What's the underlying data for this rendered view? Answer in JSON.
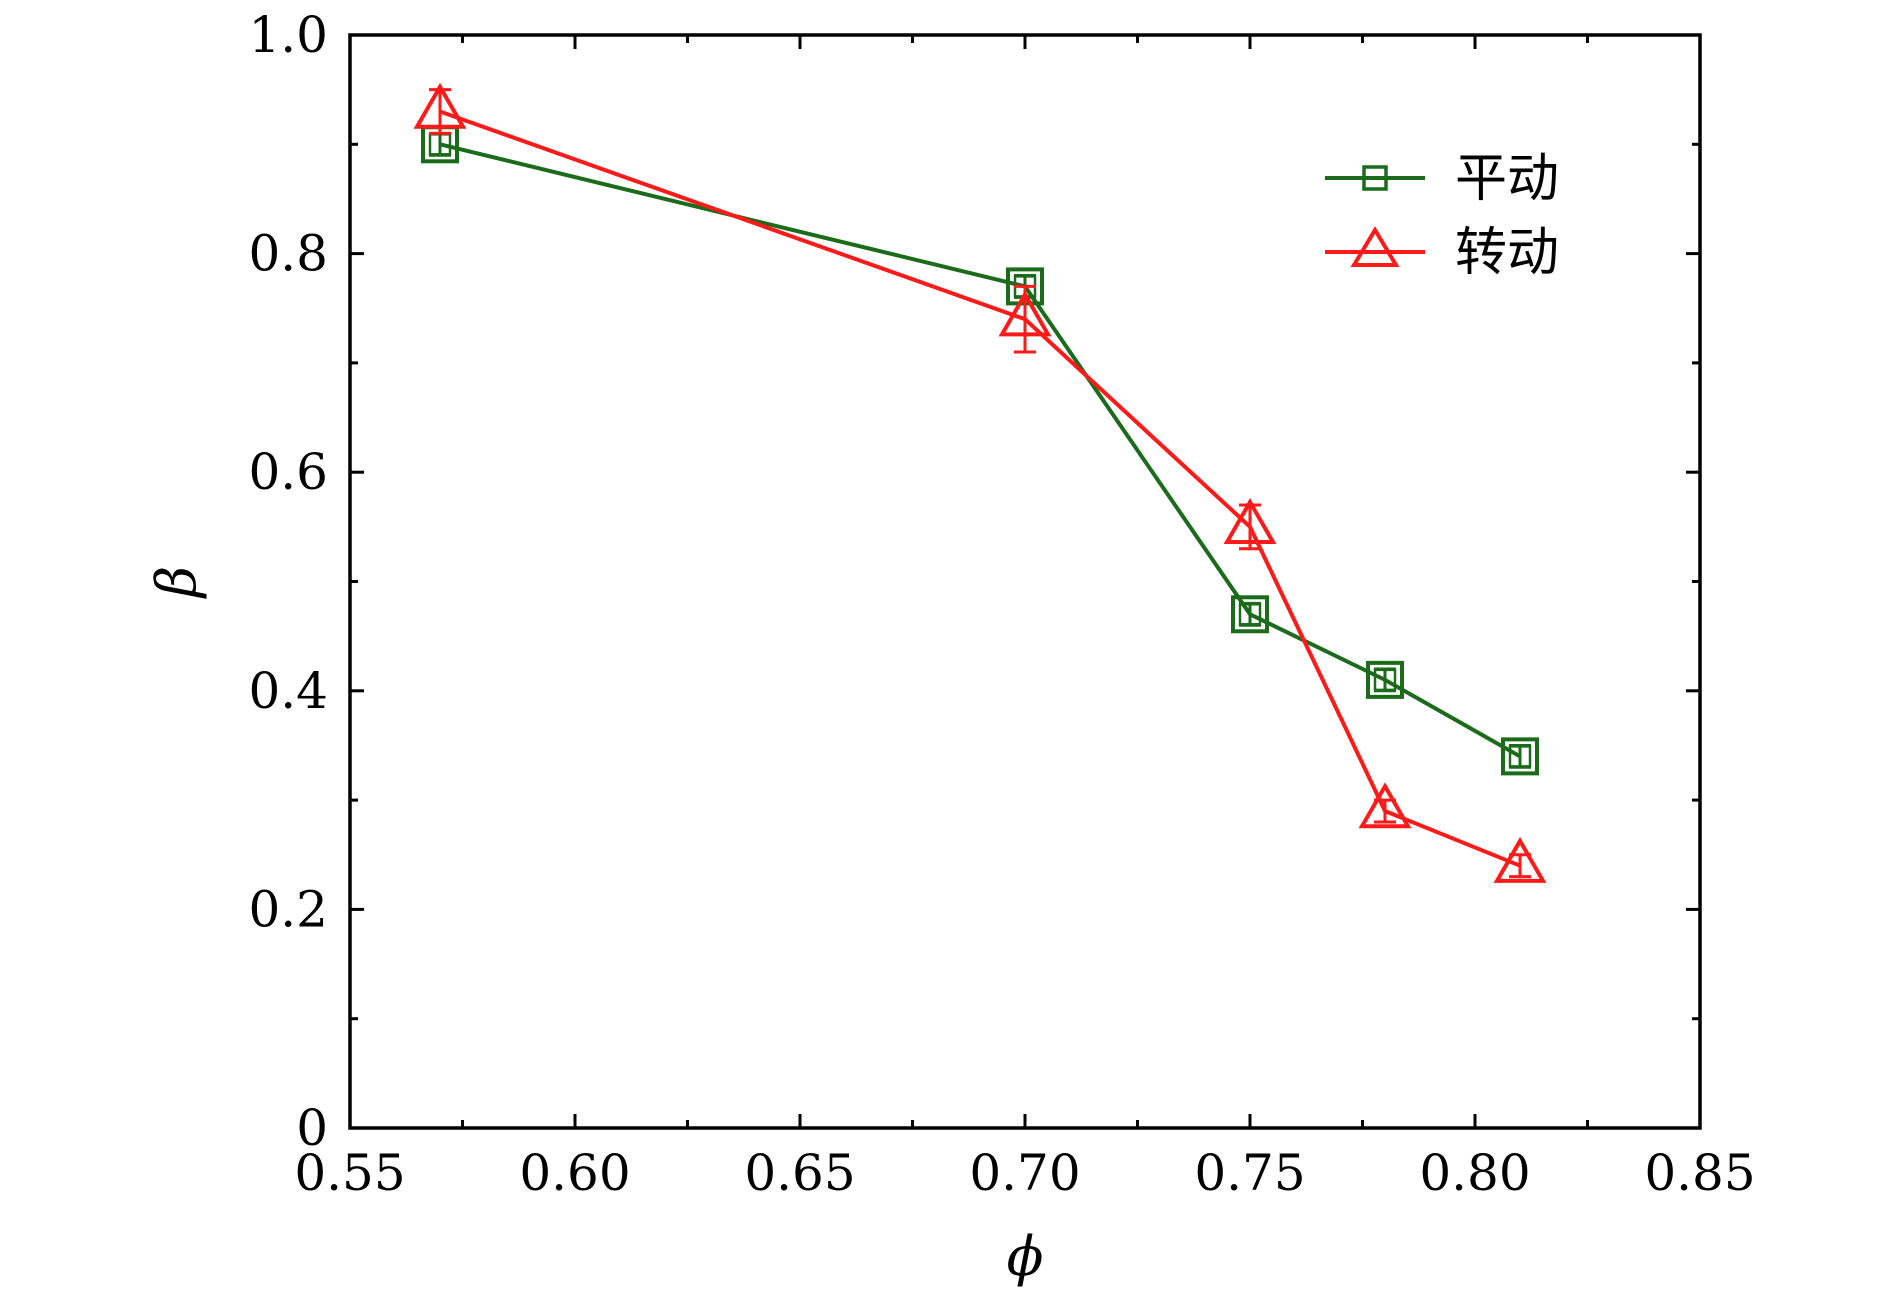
{
  "chart_data": {
    "type": "line",
    "xlabel": "ϕ",
    "ylabel": "β",
    "xlim": [
      0.55,
      0.85
    ],
    "ylim": [
      0,
      1.0
    ],
    "xticks": [
      0.55,
      0.6,
      0.65,
      0.7,
      0.75,
      0.8,
      0.85
    ],
    "xtick_labels": [
      "0.55",
      "0.60",
      "0.65",
      "0.70",
      "0.75",
      "0.80",
      "0.85"
    ],
    "yticks": [
      0,
      0.2,
      0.4,
      0.6,
      0.8,
      1.0
    ],
    "ytick_labels": [
      "0",
      "0.2",
      "0.4",
      "0.6",
      "0.8",
      "1.0"
    ],
    "grid": false,
    "legend_position": "top-right",
    "series": [
      {
        "name": "平动",
        "marker": "square",
        "color": "#1a6b1a",
        "x": [
          0.57,
          0.7,
          0.75,
          0.78,
          0.81
        ],
        "y": [
          0.9,
          0.77,
          0.47,
          0.41,
          0.34
        ],
        "err": [
          0.01,
          0.01,
          0.01,
          0.01,
          0.01
        ]
      },
      {
        "name": "转动",
        "marker": "triangle",
        "color": "#ff1a1a",
        "x": [
          0.57,
          0.7,
          0.75,
          0.78,
          0.81
        ],
        "y": [
          0.93,
          0.74,
          0.55,
          0.29,
          0.24
        ],
        "err": [
          0.02,
          0.03,
          0.02,
          0.01,
          0.01
        ]
      }
    ]
  }
}
